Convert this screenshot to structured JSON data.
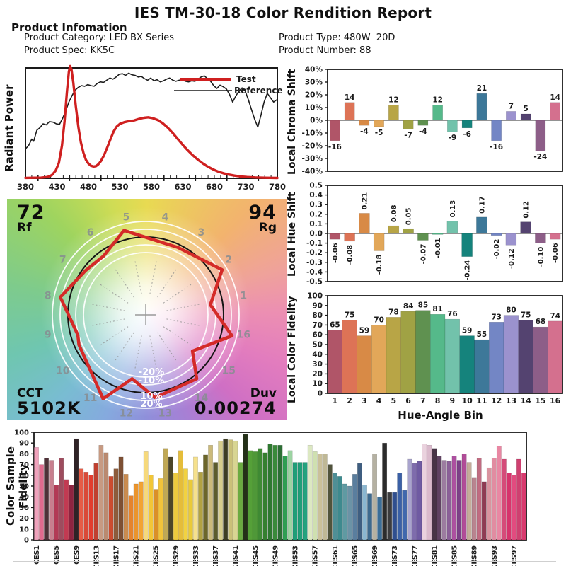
{
  "header": {
    "title": "IES TM-30-18 Color Rendition Report"
  },
  "product": {
    "section_title": "Product Infomation",
    "fields": [
      {
        "label": "Product Category:",
        "value": "LED BX Series"
      },
      {
        "label": "Product Spec:",
        "value": "KK5C"
      },
      {
        "label": "Product Type:",
        "value": "480W  20D"
      },
      {
        "label": "Product Number:",
        "value": "88"
      }
    ]
  },
  "bin_colors": [
    "#b05568",
    "#dd7356",
    "#d88a46",
    "#e2a759",
    "#b8a546",
    "#a0a244",
    "#5f9150",
    "#55b98a",
    "#72c2ab",
    "#15837c",
    "#3d7899",
    "#7386c5",
    "#9b92ce",
    "#544370",
    "#8d5e88",
    "#d4708e"
  ],
  "chart_data": [
    {
      "id": "spd",
      "type": "line",
      "ylabel": "Radiant Power",
      "xlim": [
        380,
        780
      ],
      "xticks": [
        380,
        430,
        480,
        530,
        580,
        630,
        680,
        730,
        780
      ],
      "legend": [
        {
          "name": "Test",
          "color": "#cf2020"
        },
        {
          "name": "Reference",
          "color": "#1c1c1c"
        }
      ],
      "series": [
        {
          "name": "Reference",
          "color": "#1c1c1c",
          "width": 1.6,
          "points": [
            [
              380,
              0.27
            ],
            [
              385,
              0.3
            ],
            [
              390,
              0.36
            ],
            [
              393,
              0.34
            ],
            [
              398,
              0.44
            ],
            [
              403,
              0.465
            ],
            [
              408,
              0.5
            ],
            [
              413,
              0.49
            ],
            [
              418,
              0.52
            ],
            [
              424,
              0.515
            ],
            [
              429,
              0.5
            ],
            [
              434,
              0.495
            ],
            [
              439,
              0.55
            ],
            [
              444,
              0.62
            ],
            [
              449,
              0.7
            ],
            [
              454,
              0.76
            ],
            [
              459,
              0.81
            ],
            [
              464,
              0.835
            ],
            [
              469,
              0.85
            ],
            [
              474,
              0.845
            ],
            [
              479,
              0.86
            ],
            [
              484,
              0.85
            ],
            [
              489,
              0.845
            ],
            [
              494,
              0.87
            ],
            [
              499,
              0.885
            ],
            [
              504,
              0.88
            ],
            [
              509,
              0.9
            ],
            [
              514,
              0.92
            ],
            [
              519,
              0.91
            ],
            [
              524,
              0.93
            ],
            [
              529,
              0.955
            ],
            [
              534,
              0.96
            ],
            [
              539,
              0.945
            ],
            [
              544,
              0.965
            ],
            [
              549,
              0.95
            ],
            [
              554,
              0.945
            ],
            [
              559,
              0.93
            ],
            [
              564,
              0.935
            ],
            [
              569,
              0.915
            ],
            [
              574,
              0.9
            ],
            [
              579,
              0.92
            ],
            [
              584,
              0.895
            ],
            [
              589,
              0.905
            ],
            [
              594,
              0.885
            ],
            [
              599,
              0.895
            ],
            [
              604,
              0.91
            ],
            [
              609,
              0.92
            ],
            [
              614,
              0.9
            ],
            [
              619,
              0.89
            ],
            [
              624,
              0.9
            ],
            [
              629,
              0.905
            ],
            [
              634,
              0.89
            ],
            [
              639,
              0.885
            ],
            [
              644,
              0.895
            ],
            [
              649,
              0.89
            ],
            [
              654,
              0.91
            ],
            [
              659,
              0.93
            ],
            [
              664,
              0.94
            ],
            [
              669,
              0.915
            ],
            [
              674,
              0.89
            ],
            [
              679,
              0.85
            ],
            [
              684,
              0.825
            ],
            [
              689,
              0.855
            ],
            [
              694,
              0.84
            ],
            [
              699,
              0.82
            ],
            [
              704,
              0.77
            ],
            [
              709,
              0.7
            ],
            [
              714,
              0.755
            ],
            [
              719,
              0.8
            ],
            [
              724,
              0.83
            ],
            [
              729,
              0.8
            ],
            [
              734,
              0.72
            ],
            [
              739,
              0.63
            ],
            [
              744,
              0.54
            ],
            [
              749,
              0.47
            ],
            [
              754,
              0.58
            ],
            [
              759,
              0.7
            ],
            [
              764,
              0.78
            ],
            [
              769,
              0.74
            ],
            [
              774,
              0.7
            ],
            [
              779,
              0.72
            ]
          ]
        },
        {
          "name": "Test",
          "color": "#cf2020",
          "width": 3.4,
          "points": [
            [
              380,
              0.004
            ],
            [
              395,
              0.005
            ],
            [
              405,
              0.006
            ],
            [
              415,
              0.012
            ],
            [
              422,
              0.03
            ],
            [
              428,
              0.07
            ],
            [
              433,
              0.14
            ],
            [
              438,
              0.3
            ],
            [
              442,
              0.52
            ],
            [
              446,
              0.8
            ],
            [
              449,
              0.98
            ],
            [
              451,
              1.03
            ],
            [
              453,
              1.0
            ],
            [
              456,
              0.88
            ],
            [
              460,
              0.66
            ],
            [
              464,
              0.47
            ],
            [
              468,
              0.33
            ],
            [
              472,
              0.235
            ],
            [
              476,
              0.17
            ],
            [
              480,
              0.135
            ],
            [
              484,
              0.115
            ],
            [
              488,
              0.108
            ],
            [
              492,
              0.112
            ],
            [
              496,
              0.13
            ],
            [
              500,
              0.16
            ],
            [
              505,
              0.215
            ],
            [
              510,
              0.285
            ],
            [
              515,
              0.36
            ],
            [
              520,
              0.43
            ],
            [
              525,
              0.475
            ],
            [
              530,
              0.5
            ],
            [
              537,
              0.515
            ],
            [
              545,
              0.525
            ],
            [
              552,
              0.53
            ],
            [
              560,
              0.545
            ],
            [
              568,
              0.555
            ],
            [
              575,
              0.56
            ],
            [
              582,
              0.552
            ],
            [
              590,
              0.535
            ],
            [
              598,
              0.505
            ],
            [
              606,
              0.465
            ],
            [
              614,
              0.415
            ],
            [
              622,
              0.36
            ],
            [
              630,
              0.305
            ],
            [
              638,
              0.255
            ],
            [
              646,
              0.21
            ],
            [
              654,
              0.17
            ],
            [
              662,
              0.135
            ],
            [
              670,
              0.105
            ],
            [
              678,
              0.082
            ],
            [
              686,
              0.062
            ],
            [
              694,
              0.047
            ],
            [
              702,
              0.035
            ],
            [
              712,
              0.025
            ],
            [
              722,
              0.017
            ],
            [
              732,
              0.012
            ],
            [
              745,
              0.008
            ],
            [
              760,
              0.005
            ],
            [
              780,
              0.003
            ]
          ]
        }
      ]
    },
    {
      "id": "cvg",
      "type": "vector-graphic",
      "rf": "72",
      "rf_label": "Rf",
      "rg": "94",
      "rg_label": "Rg",
      "cct_label": "CCT",
      "cct": "5102K",
      "duv_label": "Duv",
      "duv": "0.00274",
      "ring_labels": [
        "-20%",
        "-10%",
        "10%",
        "20%"
      ],
      "bin_numbers": [
        "1",
        "2",
        "3",
        "4",
        "5",
        "6",
        "7",
        "8",
        "9",
        "10",
        "11",
        "12",
        "13",
        "14",
        "15",
        "16"
      ],
      "test_color": "#d42a28",
      "reference_color": "#141414"
    },
    {
      "id": "chroma",
      "type": "bar",
      "ylabel": "Local Chroma Shift",
      "ylim": [
        -40,
        40
      ],
      "ytick_step": 10,
      "ytick_suffix": "%",
      "categories": [
        "1",
        "2",
        "3",
        "4",
        "5",
        "6",
        "7",
        "8",
        "9",
        "10",
        "11",
        "12",
        "13",
        "14",
        "15",
        "16"
      ],
      "values": [
        -16,
        14,
        -4,
        -5,
        12,
        -7,
        -4,
        12,
        -9,
        -6,
        21,
        -16,
        7,
        5,
        -24,
        14
      ]
    },
    {
      "id": "hue",
      "type": "bar",
      "ylabel": "Local Hue Shift",
      "ylim": [
        -0.5,
        0.5
      ],
      "ytick_step": 0.1,
      "categories": [
        "1",
        "2",
        "3",
        "4",
        "5",
        "6",
        "7",
        "8",
        "9",
        "10",
        "11",
        "12",
        "13",
        "14",
        "15",
        "16"
      ],
      "values": [
        -0.06,
        -0.08,
        0.21,
        -0.18,
        0.08,
        0.05,
        -0.07,
        -0.01,
        0.13,
        -0.24,
        0.17,
        -0.02,
        -0.12,
        0.12,
        -0.1,
        -0.06
      ]
    },
    {
      "id": "fidelity",
      "type": "bar",
      "ylabel": "Local Color Fidelity",
      "xlabel": "Hue-Angle Bin",
      "ylim": [
        0,
        100
      ],
      "ytick_step": 10,
      "categories": [
        "1",
        "2",
        "3",
        "4",
        "5",
        "6",
        "7",
        "8",
        "9",
        "10",
        "11",
        "12",
        "13",
        "14",
        "15",
        "16"
      ],
      "values": [
        65,
        75,
        59,
        70,
        78,
        84,
        85,
        81,
        76,
        59,
        55,
        73,
        80,
        75,
        68,
        74
      ]
    },
    {
      "id": "ces",
      "type": "bar",
      "ylabel": "Color Sample Fidelity",
      "ylim": [
        0,
        100
      ],
      "ytick_step": 10,
      "tick_every": 4,
      "tick_labels": [
        "CES1",
        "CES5",
        "CES9",
        "CES13",
        "CES17",
        "CES21",
        "CES25",
        "CES29",
        "CES33",
        "CES37",
        "CES41",
        "CES45",
        "CES49",
        "CES53",
        "CES57",
        "CES61",
        "CES65",
        "CES69",
        "CES73",
        "CES77",
        "CES81",
        "CES85",
        "CES89",
        "CES93",
        "CES97"
      ],
      "values": [
        86,
        70,
        76,
        74,
        51,
        76,
        56,
        51,
        94,
        66,
        63,
        60,
        71,
        88,
        81,
        59,
        66,
        77,
        61,
        41,
        52,
        54,
        82,
        60,
        47,
        57,
        85,
        77,
        62,
        83,
        66,
        56,
        77,
        63,
        79,
        88,
        72,
        92,
        94,
        93,
        92,
        72,
        98,
        83,
        82,
        85,
        81,
        89,
        88,
        88,
        78,
        83,
        72,
        72,
        72,
        88,
        82,
        80,
        80,
        70,
        62,
        59,
        52,
        50,
        61,
        71,
        51,
        43,
        80,
        40,
        90,
        44,
        44,
        62,
        46,
        75,
        71,
        73,
        89,
        88,
        85,
        78,
        74,
        73,
        78,
        74,
        80,
        72,
        58,
        76,
        54,
        67,
        76,
        87,
        75,
        62,
        60,
        75,
        62
      ],
      "colors": [
        "#f0a2bc",
        "#e16a8e",
        "#4f3138",
        "#c87f8e",
        "#b23a55",
        "#9e4c5e",
        "#c23a52",
        "#8e2440",
        "#2f2326",
        "#e65c47",
        "#d94a38",
        "#e23d2e",
        "#c0402f",
        "#c79a82",
        "#ba8a70",
        "#cc4c30",
        "#8d5c3c",
        "#7e5034",
        "#ca8c50",
        "#e5832d",
        "#ea942d",
        "#f2a332",
        "#f6d97c",
        "#f2c637",
        "#da9028",
        "#f2c33a",
        "#c0a854",
        "#4c4628",
        "#ecca3d",
        "#e5bd3a",
        "#f2d240",
        "#eaca38",
        "#f6e18c",
        "#b2a242",
        "#6c662a",
        "#cbba7a",
        "#5c5c2c",
        "#d6cd8c",
        "#3d3d24",
        "#c9c078",
        "#d8d592",
        "#6aaa40",
        "#243018",
        "#55a038",
        "#4f9838",
        "#3f8a34",
        "#35802f",
        "#2f7830",
        "#3a8a3a",
        "#2c6e34",
        "#2f9e52",
        "#9cd4a2",
        "#1f9e78",
        "#1f9e78",
        "#23a37e",
        "#dce8c2",
        "#cfe0b0",
        "#cac09a",
        "#bfb896",
        "#50533c",
        "#4f8f96",
        "#3e8a8e",
        "#5f9aa2",
        "#6b93a6",
        "#5a7e9e",
        "#3f5e80",
        "#8ab6d0",
        "#3e6a8e",
        "#b5b1a2",
        "#3b6e98",
        "#2c2c2c",
        "#3c3c3e",
        "#2f4f90",
        "#3a60a6",
        "#4068ae",
        "#a9a4ce",
        "#7e6cac",
        "#6f5ba2",
        "#ead2de",
        "#dabacc",
        "#483446",
        "#604262",
        "#9c7ca0",
        "#8b6098",
        "#ad50a0",
        "#7d4088",
        "#b14c98",
        "#c5ac9a",
        "#b9848f",
        "#c16b81",
        "#8f3b53",
        "#d9939f",
        "#e18ca1",
        "#e987a3",
        "#d54b79",
        "#d7336c",
        "#e24b7f",
        "#cf4070",
        "#d83a6e"
      ]
    }
  ]
}
